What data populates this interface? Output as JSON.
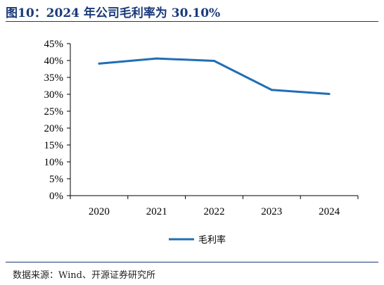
{
  "header": {
    "title": "图10：2024 年公司毛利率为 30.10%"
  },
  "footer": {
    "source": "数据来源：Wind、开源证券研究所"
  },
  "colors": {
    "line": "#1f6fb4",
    "title": "#1a3a7a"
  },
  "chart_data": {
    "type": "line",
    "x": [
      "2020",
      "2021",
      "2022",
      "2023",
      "2024"
    ],
    "series": [
      {
        "name": "毛利率",
        "values": [
          39.1,
          40.6,
          39.9,
          31.3,
          30.1
        ]
      }
    ],
    "yticks": [
      "0%",
      "5%",
      "10%",
      "15%",
      "20%",
      "25%",
      "30%",
      "35%",
      "40%",
      "45%"
    ],
    "ylim": [
      0,
      45
    ],
    "legend_position": "bottom-center",
    "grid": false
  }
}
